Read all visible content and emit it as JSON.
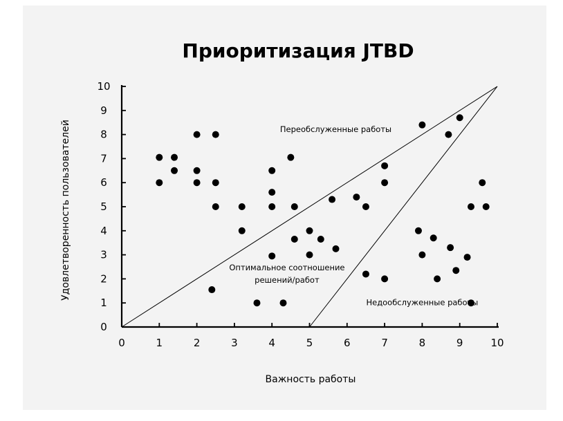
{
  "chart_data": {
    "type": "scatter",
    "title": "Приоритизация JTBD",
    "xlabel": "Важность работы",
    "ylabel": "Удовлетворенность пользователей",
    "xlim": [
      0,
      10
    ],
    "ylim": [
      0,
      10
    ],
    "x_ticks": [
      "0",
      "1",
      "2",
      "3",
      "4",
      "5",
      "6",
      "7",
      "8",
      "9",
      "10"
    ],
    "y_ticks": [
      "0",
      "1",
      "2",
      "3",
      "4",
      "5",
      "6",
      "7",
      "8",
      "9",
      "10"
    ],
    "grid": false,
    "colors": {
      "points": "#000000",
      "lines": "#000000",
      "background": "#f3f3f3"
    },
    "region_lines": [
      {
        "from": [
          0,
          0
        ],
        "to": [
          10,
          10
        ]
      },
      {
        "from": [
          5,
          0
        ],
        "to": [
          10,
          10
        ]
      }
    ],
    "regions": [
      {
        "label": "Переобслуженные работы",
        "x": 5.7,
        "y": 8.1
      },
      {
        "label_lines": [
          "Оптимальное соотношение",
          "решений/работ"
        ],
        "x": 4.4,
        "y": 2.35
      },
      {
        "label": "Недообслуженные работы",
        "x": 8.0,
        "y": 0.9
      }
    ],
    "points": [
      {
        "x": 1.0,
        "y": 7.05
      },
      {
        "x": 1.0,
        "y": 6.0
      },
      {
        "x": 1.4,
        "y": 7.05
      },
      {
        "x": 1.4,
        "y": 6.5
      },
      {
        "x": 2.0,
        "y": 8.0
      },
      {
        "x": 2.0,
        "y": 6.5
      },
      {
        "x": 2.0,
        "y": 6.0
      },
      {
        "x": 2.5,
        "y": 8.0
      },
      {
        "x": 2.5,
        "y": 6.0
      },
      {
        "x": 2.5,
        "y": 5.0
      },
      {
        "x": 2.4,
        "y": 1.55
      },
      {
        "x": 3.2,
        "y": 5.0
      },
      {
        "x": 3.2,
        "y": 4.0
      },
      {
        "x": 3.6,
        "y": 1.0
      },
      {
        "x": 4.0,
        "y": 6.5
      },
      {
        "x": 4.0,
        "y": 5.6
      },
      {
        "x": 4.0,
        "y": 5.0
      },
      {
        "x": 4.0,
        "y": 2.95
      },
      {
        "x": 4.3,
        "y": 1.0
      },
      {
        "x": 4.5,
        "y": 7.05
      },
      {
        "x": 4.6,
        "y": 5.0
      },
      {
        "x": 4.6,
        "y": 3.65
      },
      {
        "x": 5.0,
        "y": 4.0
      },
      {
        "x": 5.0,
        "y": 3.0
      },
      {
        "x": 5.3,
        "y": 3.65
      },
      {
        "x": 5.6,
        "y": 5.3
      },
      {
        "x": 5.7,
        "y": 3.25
      },
      {
        "x": 6.25,
        "y": 5.4
      },
      {
        "x": 6.5,
        "y": 5.0
      },
      {
        "x": 6.5,
        "y": 2.2
      },
      {
        "x": 7.0,
        "y": 6.7
      },
      {
        "x": 7.0,
        "y": 6.0
      },
      {
        "x": 7.0,
        "y": 2.0
      },
      {
        "x": 7.9,
        "y": 4.0
      },
      {
        "x": 8.0,
        "y": 8.4
      },
      {
        "x": 8.0,
        "y": 3.0
      },
      {
        "x": 8.3,
        "y": 3.7
      },
      {
        "x": 8.4,
        "y": 2.0
      },
      {
        "x": 8.7,
        "y": 8.0
      },
      {
        "x": 8.75,
        "y": 3.3
      },
      {
        "x": 8.9,
        "y": 2.35
      },
      {
        "x": 9.0,
        "y": 8.7
      },
      {
        "x": 9.2,
        "y": 2.9
      },
      {
        "x": 9.3,
        "y": 5.0
      },
      {
        "x": 9.3,
        "y": 1.0
      },
      {
        "x": 9.6,
        "y": 6.0
      },
      {
        "x": 9.7,
        "y": 5.0
      }
    ]
  }
}
